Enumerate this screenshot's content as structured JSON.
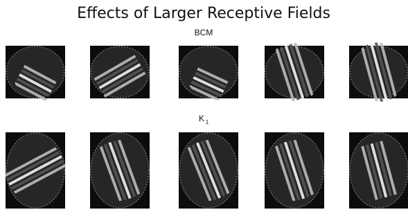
{
  "title": "Effects of Larger Receptive Fields",
  "rows": [
    {
      "label": "BCM"
    },
    {
      "label": "K",
      "subscript": "1"
    }
  ]
}
